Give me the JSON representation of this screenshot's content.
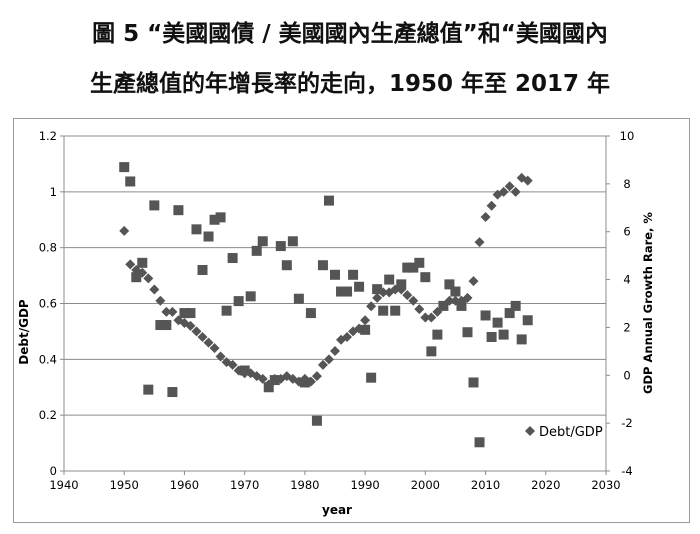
{
  "title_line1": "圖 5 “美國國債 / 美國國內生產總值”和“美國國內",
  "title_line2": "生產總值的年增長率的走向，1950 年至 2017 年",
  "chart_data": {
    "type": "scatter",
    "xlabel": "year",
    "ylabel": "Debt/GDP",
    "y2label": "GDP Annual Growth Rare, %",
    "xlim": [
      1940,
      2030
    ],
    "ylim": [
      0,
      1.2
    ],
    "y2lim": [
      -4,
      10
    ],
    "xticks": [
      "1940",
      "1950",
      "1960",
      "1970",
      "1980",
      "1990",
      "2000",
      "2010",
      "2020",
      "2030"
    ],
    "yticks": [
      "0",
      "0.2",
      "0.4",
      "0.6",
      "0.8",
      "1",
      "1.2"
    ],
    "y2ticks": [
      "-4",
      "-2",
      "0",
      "2",
      "4",
      "6",
      "8",
      "10"
    ],
    "grid": true,
    "legend_position": "bottom-right",
    "series": [
      {
        "name": "Debt/GDP",
        "axis": "left",
        "marker": "diamond",
        "color": "#555555",
        "points": [
          [
            1950,
            0.86
          ],
          [
            1951,
            0.74
          ],
          [
            1952,
            0.72
          ],
          [
            1953,
            0.71
          ],
          [
            1954,
            0.69
          ],
          [
            1955,
            0.65
          ],
          [
            1956,
            0.61
          ],
          [
            1957,
            0.57
          ],
          [
            1958,
            0.57
          ],
          [
            1959,
            0.54
          ],
          [
            1960,
            0.53
          ],
          [
            1961,
            0.52
          ],
          [
            1962,
            0.5
          ],
          [
            1963,
            0.48
          ],
          [
            1964,
            0.46
          ],
          [
            1965,
            0.44
          ],
          [
            1966,
            0.41
          ],
          [
            1967,
            0.39
          ],
          [
            1968,
            0.38
          ],
          [
            1969,
            0.36
          ],
          [
            1970,
            0.35
          ],
          [
            1971,
            0.35
          ],
          [
            1972,
            0.34
          ],
          [
            1973,
            0.33
          ],
          [
            1974,
            0.31
          ],
          [
            1975,
            0.33
          ],
          [
            1976,
            0.33
          ],
          [
            1977,
            0.34
          ],
          [
            1978,
            0.33
          ],
          [
            1979,
            0.32
          ],
          [
            1980,
            0.33
          ],
          [
            1981,
            0.32
          ],
          [
            1982,
            0.34
          ],
          [
            1983,
            0.38
          ],
          [
            1984,
            0.4
          ],
          [
            1985,
            0.43
          ],
          [
            1986,
            0.47
          ],
          [
            1987,
            0.48
          ],
          [
            1988,
            0.5
          ],
          [
            1989,
            0.51
          ],
          [
            1990,
            0.54
          ],
          [
            1991,
            0.59
          ],
          [
            1992,
            0.62
          ],
          [
            1993,
            0.64
          ],
          [
            1994,
            0.64
          ],
          [
            1995,
            0.65
          ],
          [
            1996,
            0.65
          ],
          [
            1997,
            0.63
          ],
          [
            1998,
            0.61
          ],
          [
            1999,
            0.58
          ],
          [
            2000,
            0.55
          ],
          [
            2001,
            0.55
          ],
          [
            2002,
            0.57
          ],
          [
            2003,
            0.59
          ],
          [
            2004,
            0.61
          ],
          [
            2005,
            0.61
          ],
          [
            2006,
            0.61
          ],
          [
            2007,
            0.62
          ],
          [
            2008,
            0.68
          ],
          [
            2009,
            0.82
          ],
          [
            2010,
            0.91
          ],
          [
            2011,
            0.95
          ],
          [
            2012,
            0.99
          ],
          [
            2013,
            1.0
          ],
          [
            2014,
            1.02
          ],
          [
            2015,
            1.0
          ],
          [
            2016,
            1.05
          ],
          [
            2017,
            1.04
          ]
        ]
      },
      {
        "name": "",
        "axis": "right",
        "marker": "square",
        "color": "#555555",
        "points": [
          [
            1950,
            8.7
          ],
          [
            1951,
            8.1
          ],
          [
            1952,
            4.1
          ],
          [
            1953,
            4.7
          ],
          [
            1954,
            -0.6
          ],
          [
            1955,
            7.1
          ],
          [
            1956,
            2.1
          ],
          [
            1957,
            2.1
          ],
          [
            1958,
            -0.7
          ],
          [
            1959,
            6.9
          ],
          [
            1960,
            2.6
          ],
          [
            1961,
            2.6
          ],
          [
            1962,
            6.1
          ],
          [
            1963,
            4.4
          ],
          [
            1964,
            5.8
          ],
          [
            1965,
            6.5
          ],
          [
            1966,
            6.6
          ],
          [
            1967,
            2.7
          ],
          [
            1968,
            4.9
          ],
          [
            1969,
            3.1
          ],
          [
            1970,
            0.2
          ],
          [
            1971,
            3.3
          ],
          [
            1972,
            5.2
          ],
          [
            1973,
            5.6
          ],
          [
            1974,
            -0.5
          ],
          [
            1975,
            -0.2
          ],
          [
            1976,
            5.4
          ],
          [
            1977,
            4.6
          ],
          [
            1978,
            5.6
          ],
          [
            1979,
            3.2
          ],
          [
            1980,
            -0.3
          ],
          [
            1981,
            2.6
          ],
          [
            1982,
            -1.9
          ],
          [
            1983,
            4.6
          ],
          [
            1984,
            7.3
          ],
          [
            1985,
            4.2
          ],
          [
            1986,
            3.5
          ],
          [
            1987,
            3.5
          ],
          [
            1988,
            4.2
          ],
          [
            1989,
            3.7
          ],
          [
            1990,
            1.9
          ],
          [
            1991,
            -0.1
          ],
          [
            1992,
            3.6
          ],
          [
            1993,
            2.7
          ],
          [
            1994,
            4.0
          ],
          [
            1995,
            2.7
          ],
          [
            1996,
            3.8
          ],
          [
            1997,
            4.5
          ],
          [
            1998,
            4.5
          ],
          [
            1999,
            4.7
          ],
          [
            2000,
            4.1
          ],
          [
            2001,
            1.0
          ],
          [
            2002,
            1.7
          ],
          [
            2003,
            2.9
          ],
          [
            2004,
            3.8
          ],
          [
            2005,
            3.5
          ],
          [
            2006,
            2.9
          ],
          [
            2007,
            1.8
          ],
          [
            2008,
            -0.3
          ],
          [
            2009,
            -2.8
          ],
          [
            2010,
            2.5
          ],
          [
            2011,
            1.6
          ],
          [
            2012,
            2.2
          ],
          [
            2013,
            1.7
          ],
          [
            2014,
            2.6
          ],
          [
            2015,
            2.9
          ],
          [
            2016,
            1.5
          ],
          [
            2017,
            2.3
          ]
        ]
      }
    ]
  }
}
